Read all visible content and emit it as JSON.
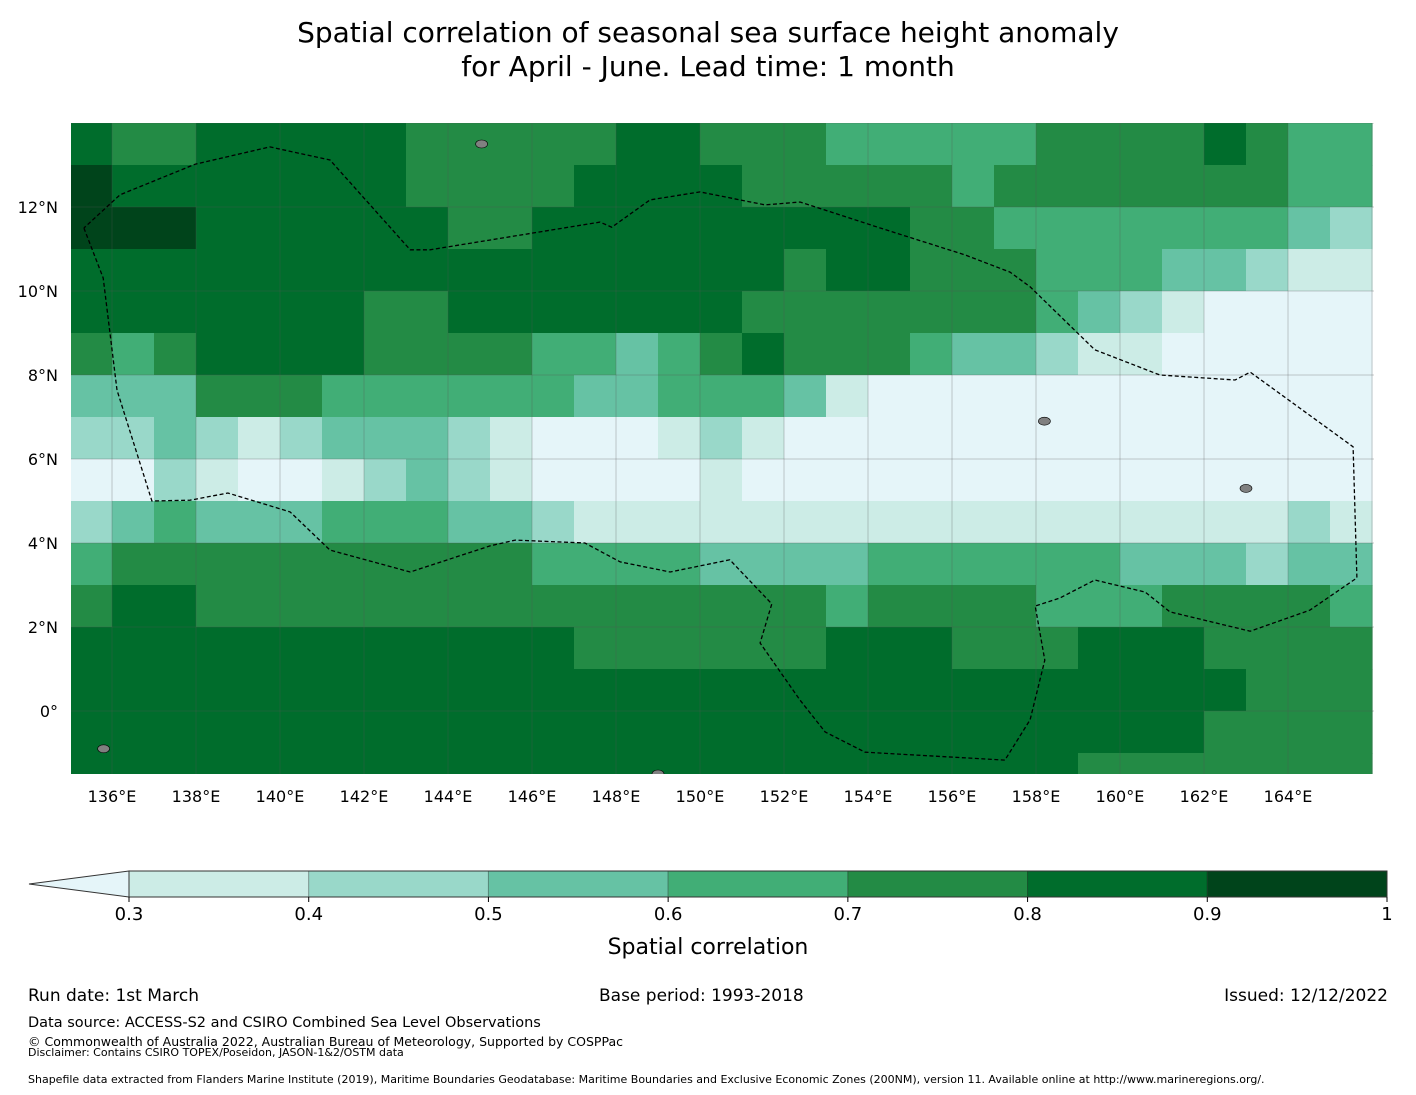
{
  "title": {
    "line1": "Spatial correlation of seasonal sea surface height anomaly",
    "line2": "for April - June. Lead time: 1 month"
  },
  "chart_data": {
    "type": "heatmap",
    "title": "Spatial correlation of seasonal sea surface height anomaly for April - June. Lead time: 1 month",
    "lon_range": [
      135,
      166
    ],
    "lat_range": [
      -1.5,
      14
    ],
    "grid_resolution_deg": 1,
    "lon_ticks": [
      "136°E",
      "138°E",
      "140°E",
      "142°E",
      "144°E",
      "146°E",
      "148°E",
      "150°E",
      "152°E",
      "154°E",
      "156°E",
      "158°E",
      "160°E",
      "162°E",
      "164°E"
    ],
    "lat_ticks": [
      "0°",
      "2°N",
      "4°N",
      "6°N",
      "8°N",
      "10°N",
      "12°N"
    ],
    "class_bounds": [
      0.3,
      0.4,
      0.5,
      0.6,
      0.7,
      0.8,
      0.9,
      1
    ],
    "class_colors": [
      "#e5f5f9",
      "#ccece6",
      "#99d8c9",
      "#66c2a4",
      "#41ae76",
      "#238b45",
      "#006d2c",
      "#00441b"
    ],
    "grid_note": "rows from north (13.5) to south (-1.5); each digit is the class index (0 = below 0.3, 7 = 0.9-1.0) for one 1-degree column starting at 135E",
    "rows": [
      "6556666655555665554444455556544",
      "7666666655556666555554555555544",
      "7776666665566666666655444444432",
      "6666666666666666656655544433211",
      "6666666556666666555555543210000",
      "5456666555544345655543321100000",
      "3335554444443344431000000000000",
      "2232123332100012100000000000000",
      "0021001232100001000000000000000",
      "2343334443321111111111111111121",
      "4555555555544443333444444333233",
      "5665555555555555554555544455554",
      "6666666666665555556665556665555",
      "6666666666666666666666666666555",
      "6666666666666666666666666665555",
      "6666666666666666666666665555555"
    ],
    "boundary_lonlat": [
      [
        135.33,
        11.5
      ],
      [
        135.79,
        10.31
      ],
      [
        136.12,
        7.64
      ],
      [
        136.95,
        5.0
      ],
      [
        137.86,
        5.02
      ],
      [
        138.76,
        5.19
      ],
      [
        140.24,
        4.74
      ],
      [
        141.19,
        3.83
      ],
      [
        143.1,
        3.31
      ],
      [
        145.0,
        3.93
      ],
      [
        145.6,
        4.07
      ],
      [
        147.26,
        4.0
      ],
      [
        148.1,
        3.55
      ],
      [
        149.29,
        3.31
      ],
      [
        150.71,
        3.6
      ],
      [
        151.71,
        2.55
      ],
      [
        151.43,
        1.62
      ],
      [
        152.38,
        0.26
      ],
      [
        152.98,
        -0.5
      ],
      [
        153.93,
        -0.98
      ],
      [
        157.26,
        -1.17
      ],
      [
        157.86,
        -0.21
      ],
      [
        158.21,
        1.21
      ],
      [
        157.98,
        2.5
      ],
      [
        158.57,
        2.69
      ],
      [
        159.4,
        3.12
      ],
      [
        160.6,
        2.83
      ],
      [
        161.19,
        2.36
      ],
      [
        163.1,
        1.9
      ],
      [
        164.52,
        2.4
      ],
      [
        165.64,
        3.17
      ],
      [
        165.55,
        6.29
      ],
      [
        163.1,
        8.07
      ],
      [
        162.74,
        7.88
      ],
      [
        160.95,
        8.0
      ],
      [
        159.4,
        8.6
      ],
      [
        157.86,
        10.1
      ],
      [
        157.38,
        10.45
      ],
      [
        156.31,
        10.86
      ],
      [
        154.29,
        11.5
      ],
      [
        152.38,
        12.12
      ],
      [
        151.55,
        12.05
      ],
      [
        150.0,
        12.36
      ],
      [
        148.81,
        12.17
      ],
      [
        147.9,
        11.52
      ],
      [
        147.62,
        11.64
      ],
      [
        143.57,
        10.98
      ],
      [
        143.1,
        10.98
      ],
      [
        141.19,
        13.12
      ],
      [
        139.76,
        13.43
      ],
      [
        137.98,
        13.02
      ],
      [
        136.19,
        12.29
      ],
      [
        135.33,
        11.5
      ]
    ],
    "islands_lonlat": [
      [
        135.8,
        -0.9
      ],
      [
        144.8,
        13.5
      ],
      [
        158.2,
        6.9
      ],
      [
        163.0,
        5.3
      ],
      [
        149.0,
        -1.5
      ]
    ],
    "colorbar": {
      "label": "Spatial correlation",
      "tick_labels": [
        "0.3",
        "0.4",
        "0.5",
        "0.6",
        "0.7",
        "0.8",
        "0.9",
        "1"
      ],
      "extend": "min"
    }
  },
  "footer": {
    "run_date": "Run date: 1st March",
    "base_period": "Base period: 1993-2018",
    "issued": "Issued: 12/12/2022",
    "data_source": "Data source: ACCESS-S2 and CSIRO Combined Sea Level Observations",
    "copyright": "© Commonwealth of Australia 2022, Australian Bureau of Meteorology, Supported by COSPPac",
    "disclaimer": "Disclaimer: Contains CSIRO TOPEX/Poseidon, JASON-1&2/OSTM data",
    "shapefile": "Shapefile data extracted from Flanders Marine Institute (2019), Maritime Boundaries Geodatabase: Maritime Boundaries and Exclusive Economic Zones (200NM), version 11. Available online at http://www.marineregions.org/."
  }
}
